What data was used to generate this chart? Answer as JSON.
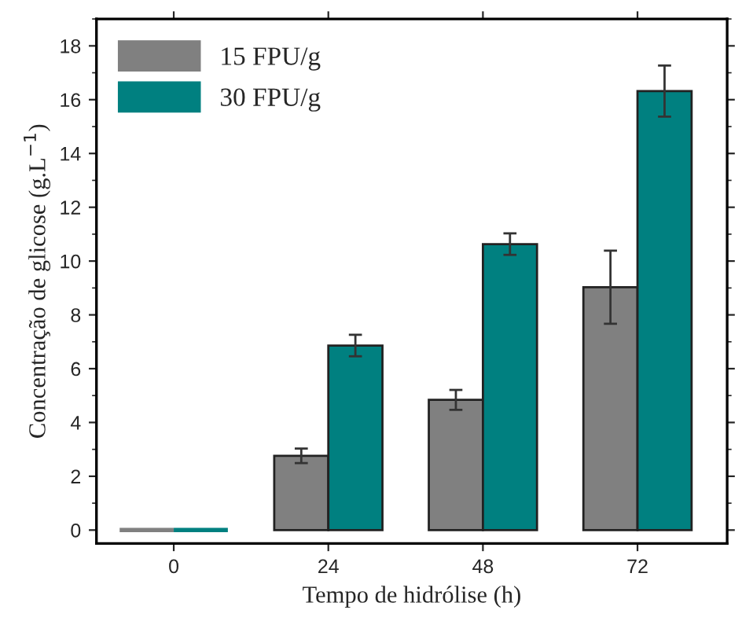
{
  "chart_data": {
    "type": "bar",
    "xlabel": "Tempo de hidrólise (h)",
    "ylabel": "Concentração de glicose (g.L$^{−1}$)",
    "categories": [
      "0",
      "24",
      "48",
      "72"
    ],
    "series": [
      {
        "name": "15 FPU/g",
        "color": "#808080",
        "values": [
          0,
          2.76,
          4.84,
          9.03
        ],
        "errors": [
          null,
          0.27,
          0.37,
          1.36
        ]
      },
      {
        "name": "30 FPU/g",
        "color": "#008080",
        "values": [
          0,
          6.86,
          10.63,
          16.32
        ],
        "errors": [
          null,
          0.4,
          0.4,
          0.95
        ]
      }
    ],
    "ylim": [
      -0.5,
      19
    ],
    "yticks": [
      0,
      2,
      4,
      6,
      8,
      10,
      12,
      14,
      16,
      18
    ],
    "legend": "top left",
    "grid": false
  }
}
